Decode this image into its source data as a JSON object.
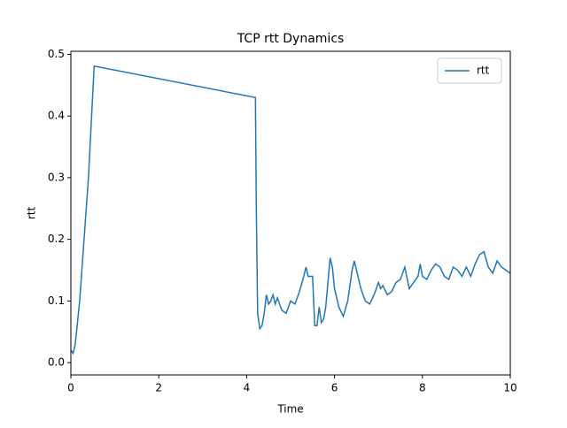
{
  "chart_data": {
    "type": "line",
    "title": "TCP rtt Dynamics",
    "x_label": "Time",
    "y_label": "rtt",
    "x": [
      0,
      0.05,
      0.1,
      0.2,
      0.3,
      0.4,
      0.53,
      4.2,
      4.22,
      4.25,
      4.3,
      4.35,
      4.4,
      4.45,
      4.5,
      4.55,
      4.6,
      4.65,
      4.7,
      4.8,
      4.9,
      5.0,
      5.1,
      5.2,
      5.3,
      5.35,
      5.4,
      5.5,
      5.55,
      5.6,
      5.65,
      5.7,
      5.75,
      5.8,
      5.85,
      5.9,
      5.95,
      6.0,
      6.1,
      6.2,
      6.3,
      6.4,
      6.45,
      6.5,
      6.6,
      6.7,
      6.8,
      6.9,
      7.0,
      7.05,
      7.1,
      7.2,
      7.3,
      7.4,
      7.5,
      7.6,
      7.7,
      7.8,
      7.9,
      7.95,
      8.0,
      8.1,
      8.2,
      8.3,
      8.4,
      8.5,
      8.6,
      8.7,
      8.8,
      8.9,
      9.0,
      9.1,
      9.2,
      9.3,
      9.4,
      9.5,
      9.6,
      9.7,
      9.8,
      9.9,
      10.0
    ],
    "series": [
      {
        "name": "rtt",
        "color": "#1f77b4",
        "values": [
          0.02,
          0.015,
          0.03,
          0.1,
          0.2,
          0.3,
          0.481,
          0.43,
          0.25,
          0.08,
          0.055,
          0.06,
          0.08,
          0.11,
          0.095,
          0.1,
          0.11,
          0.095,
          0.105,
          0.085,
          0.08,
          0.1,
          0.095,
          0.115,
          0.14,
          0.155,
          0.14,
          0.14,
          0.06,
          0.06,
          0.09,
          0.065,
          0.07,
          0.09,
          0.13,
          0.17,
          0.155,
          0.12,
          0.09,
          0.075,
          0.1,
          0.15,
          0.165,
          0.15,
          0.12,
          0.1,
          0.095,
          0.11,
          0.13,
          0.12,
          0.125,
          0.11,
          0.115,
          0.13,
          0.135,
          0.155,
          0.12,
          0.13,
          0.14,
          0.16,
          0.14,
          0.135,
          0.15,
          0.16,
          0.155,
          0.14,
          0.135,
          0.155,
          0.15,
          0.14,
          0.155,
          0.14,
          0.16,
          0.175,
          0.18,
          0.155,
          0.145,
          0.165,
          0.155,
          0.15,
          0.145
        ]
      }
    ],
    "xlim": [
      0,
      10
    ],
    "xticks": [
      0,
      2,
      4,
      6,
      8,
      10
    ],
    "ylim": [
      -0.02,
      0.505
    ],
    "yticks": [
      {
        "value": 0,
        "label": "0.0"
      },
      0.1,
      0.2,
      0.3,
      0.4,
      0.5
    ],
    "legend": "upper right"
  }
}
